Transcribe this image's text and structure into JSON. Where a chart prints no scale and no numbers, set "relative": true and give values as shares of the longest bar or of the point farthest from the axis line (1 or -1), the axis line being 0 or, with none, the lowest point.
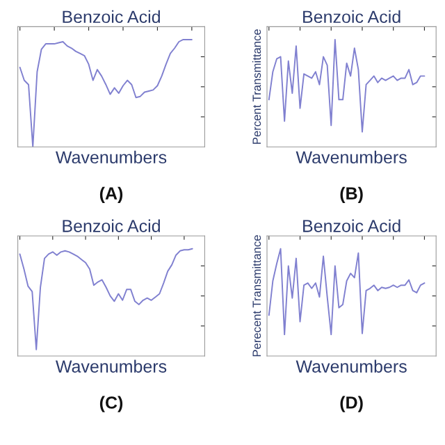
{
  "chart_data": [
    {
      "type": "line",
      "title": "Benzoic Acid",
      "xlabel": "Wavenumbers",
      "annotations": [
        "(A)"
      ],
      "relative": true,
      "tick_labels": false,
      "grid": false,
      "legend": false,
      "categories": [
        null,
        null,
        null,
        null,
        null,
        null,
        null,
        null,
        null,
        null,
        null,
        null,
        null,
        null,
        null,
        null,
        null,
        null,
        null,
        null,
        null,
        null,
        null,
        null,
        null,
        null,
        null,
        null,
        null,
        null,
        null,
        null,
        null,
        null,
        null,
        null,
        null,
        null,
        null,
        null,
        null
      ],
      "series": [
        {
          "color": "#8080d0",
          "values": [
            0.74,
            0.62,
            0.58,
            0,
            0.7,
            0.91,
            0.96,
            0.96,
            0.96,
            0.97,
            0.98,
            0.94,
            0.92,
            0.89,
            0.87,
            0.85,
            0.77,
            0.62,
            0.72,
            0.66,
            0.58,
            0.49,
            0.55,
            0.5,
            0.57,
            0.62,
            0.58,
            0.46,
            0.47,
            0.51,
            0.52,
            0.53,
            0.57,
            0.66,
            0.77,
            0.87,
            0.92,
            0.98,
            1,
            1,
            1
          ]
        }
      ]
    },
    {
      "type": "line",
      "title": "Benzoic Acid",
      "xlabel": "Wavenumbers",
      "ylabel": "Percent Transmittance",
      "annotations": [
        "(B)"
      ],
      "relative": true,
      "tick_labels": false,
      "grid": false,
      "legend": false,
      "categories": [
        null,
        null,
        null,
        null,
        null,
        null,
        null,
        null,
        null,
        null,
        null,
        null,
        null,
        null,
        null,
        null,
        null,
        null,
        null,
        null,
        null,
        null,
        null,
        null,
        null,
        null,
        null,
        null,
        null,
        null,
        null,
        null,
        null,
        null,
        null,
        null,
        null,
        null,
        null,
        null,
        null
      ],
      "series": [
        {
          "color": "#8080d0",
          "values": [
            0.44,
            0.7,
            0.82,
            0.84,
            0.24,
            0.8,
            0.5,
            0.94,
            0.36,
            0.68,
            0.66,
            0.64,
            0.7,
            0.58,
            0.84,
            0.76,
            0.2,
            1,
            0.44,
            0.44,
            0.78,
            0.66,
            0.92,
            0.72,
            0.14,
            0.58,
            0.62,
            0.66,
            0.6,
            0.64,
            0.62,
            0.64,
            0.66,
            0.62,
            0.64,
            0.64,
            0.72,
            0.58,
            0.6,
            0.66,
            0.66
          ]
        }
      ]
    },
    {
      "type": "line",
      "title": "Benzoic Acid",
      "xlabel": "Wavenumbers",
      "annotations": [
        "(C)"
      ],
      "relative": true,
      "tick_labels": false,
      "grid": false,
      "legend": false,
      "categories": [
        null,
        null,
        null,
        null,
        null,
        null,
        null,
        null,
        null,
        null,
        null,
        null,
        null,
        null,
        null,
        null,
        null,
        null,
        null,
        null,
        null,
        null,
        null,
        null,
        null,
        null,
        null,
        null,
        null,
        null,
        null,
        null,
        null,
        null,
        null,
        null,
        null,
        null,
        null,
        null,
        null,
        null,
        null
      ],
      "series": [
        {
          "color": "#8080d0",
          "values": [
            0.95,
            0.81,
            0.65,
            0.6,
            0.06,
            0.64,
            0.91,
            0.95,
            0.97,
            0.94,
            0.97,
            0.98,
            0.97,
            0.95,
            0.93,
            0.9,
            0.87,
            0.81,
            0.66,
            0.69,
            0.71,
            0.64,
            0.56,
            0.51,
            0.58,
            0.52,
            0.62,
            0.62,
            0.51,
            0.48,
            0.52,
            0.54,
            0.52,
            0.55,
            0.58,
            0.68,
            0.79,
            0.85,
            0.94,
            0.98,
            0.99,
            0.99,
            1
          ]
        }
      ]
    },
    {
      "type": "line",
      "title": "Benzoic Acid",
      "xlabel": "Wavenumbers",
      "ylabel": "Perecent Transmittance",
      "annotations": [
        "(D)"
      ],
      "relative": true,
      "tick_labels": false,
      "grid": false,
      "legend": false,
      "categories": [
        null,
        null,
        null,
        null,
        null,
        null,
        null,
        null,
        null,
        null,
        null,
        null,
        null,
        null,
        null,
        null,
        null,
        null,
        null,
        null,
        null,
        null,
        null,
        null,
        null,
        null,
        null,
        null,
        null,
        null,
        null,
        null,
        null,
        null,
        null,
        null,
        null,
        null,
        null,
        null,
        null
      ],
      "series": [
        {
          "color": "#8080d0",
          "values": [
            0.38,
            0.7,
            0.86,
            1,
            0.2,
            0.84,
            0.54,
            0.91,
            0.32,
            0.66,
            0.68,
            0.63,
            0.68,
            0.55,
            0.93,
            0.55,
            0.2,
            0.84,
            0.45,
            0.48,
            0.7,
            0.77,
            0.73,
            0.96,
            0.21,
            0.61,
            0.63,
            0.66,
            0.61,
            0.64,
            0.63,
            0.64,
            0.66,
            0.64,
            0.66,
            0.66,
            0.71,
            0.61,
            0.59,
            0.66,
            0.68
          ]
        }
      ]
    }
  ]
}
